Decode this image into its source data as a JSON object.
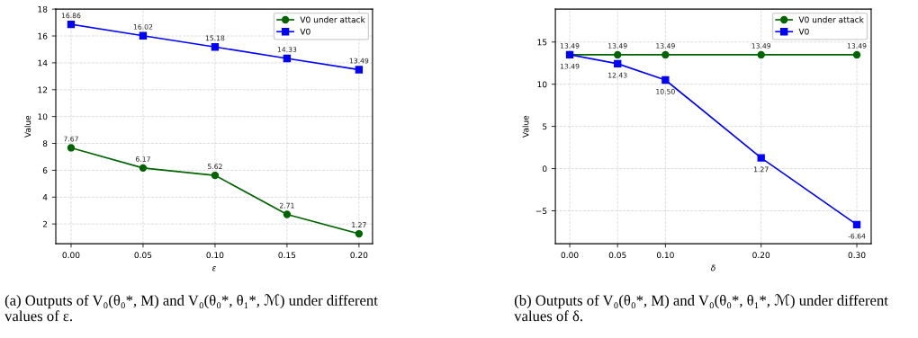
{
  "chart_data": [
    {
      "type": "line",
      "xlabel": "ε",
      "ylabel": "Value",
      "x": [
        0.0,
        0.05,
        0.1,
        0.15,
        0.2
      ],
      "xlim": [
        -0.0106,
        0.2094
      ],
      "xticks": [
        {
          "value": 0.0,
          "label": "0.00"
        },
        {
          "value": 0.05,
          "label": "0.05"
        },
        {
          "value": 0.1,
          "label": "0.10"
        },
        {
          "value": 0.15,
          "label": "0.15"
        },
        {
          "value": 0.2,
          "label": "0.20"
        }
      ],
      "ylim": [
        0.53,
        18
      ],
      "yticks": [
        2,
        4,
        6,
        8,
        10,
        12,
        14,
        16,
        18
      ],
      "grid": true,
      "legend": "top right",
      "line_style": "solid",
      "series": [
        {
          "name": "V0 under attack",
          "color": "#006400",
          "marker": "circle",
          "values": [
            7.67,
            6.17,
            5.62,
            2.71,
            1.27
          ],
          "value_labels": [
            "7.67",
            "6.17",
            "5.62",
            "2.71",
            "1.27"
          ]
        },
        {
          "name": "V0",
          "color": "#0000ff",
          "marker": "square",
          "values": [
            16.86,
            16.02,
            15.18,
            14.33,
            13.49
          ],
          "value_labels": [
            "16.86",
            "16.02",
            "15.18",
            "14.33",
            "13.49"
          ]
        }
      ],
      "annotations": [
        "(a) Outputs of V₀(θ₀*, M) and V₀(θ₀*, θ₁*, ℳ) under different values of ε."
      ]
    },
    {
      "type": "line",
      "xlabel": "δ",
      "ylabel": "Value",
      "x": [
        0.0,
        0.05,
        0.1,
        0.2,
        0.3
      ],
      "xlim": [
        -0.015,
        0.315
      ],
      "xticks": [
        {
          "value": 0.0,
          "label": "0.00"
        },
        {
          "value": 0.05,
          "label": "0.05"
        },
        {
          "value": 0.1,
          "label": "0.10"
        },
        {
          "value": 0.2,
          "label": "0.20"
        },
        {
          "value": 0.3,
          "label": "0.30"
        }
      ],
      "ylim": [
        -8.9,
        18.9
      ],
      "yticks": [
        {
          "value": -5,
          "label": "−5"
        },
        0,
        5,
        10,
        15
      ],
      "grid": true,
      "legend": "top right",
      "line_style": "solid",
      "series": [
        {
          "name": "V0 under attack",
          "color": "#006400",
          "marker": "circle",
          "values": [
            13.49,
            13.49,
            13.49,
            13.49,
            13.49
          ],
          "value_labels": [
            "13.49",
            "13.49",
            "13.49",
            "13.49",
            "13.49"
          ]
        },
        {
          "name": "V0",
          "color": "#0000ff",
          "marker": "square",
          "values": [
            13.49,
            12.43,
            10.5,
            1.27,
            -6.64
          ],
          "value_labels": [
            "13.49",
            "12.43",
            "10.50",
            "1.27",
            "-6.64"
          ]
        }
      ],
      "annotations": [
        "(b) Outputs of V₀(θ₀*, M) and V₀(θ₀*, θ₁*, ℳ) under different values of δ."
      ]
    }
  ]
}
